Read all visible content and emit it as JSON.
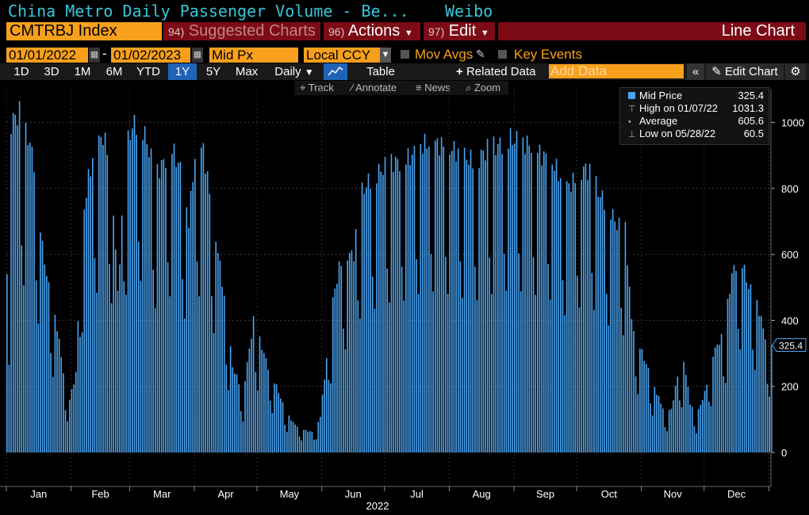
{
  "header": {
    "title": "China Metro Daily Passenger Volume - Be...",
    "source": "Weibo",
    "ticker": "CMTRBJ Index",
    "suggested_num": "94)",
    "suggested_label": "Suggested Charts",
    "actions_num": "96)",
    "actions_label": "Actions",
    "edit_num": "97)",
    "edit_label": "Edit",
    "chart_type": "Line Chart"
  },
  "controls": {
    "start_date": "01/01/2022",
    "dash": "-",
    "end_date": "01/02/2023",
    "field": "Mid Px",
    "currency": "Local CCY",
    "mov_avgs": "Mov Avgs",
    "key_events": "Key Events",
    "ranges": [
      "1D",
      "3D",
      "1M",
      "6M",
      "YTD",
      "1Y",
      "5Y",
      "Max"
    ],
    "selected_range": "1Y",
    "frequency": "Daily",
    "table_label": "Table",
    "related_label": "Related Data",
    "add_data_placeholder": "Add Data",
    "edit_chart_label": "Edit Chart",
    "track_label": "Track",
    "annotate_label": "Annotate",
    "news_label": "News",
    "zoom_label": "Zoom"
  },
  "legend": {
    "mid_label": "Mid Price",
    "mid_value": "325.4",
    "high_label": "High on 01/07/22",
    "high_value": "1031.3",
    "avg_label": "Average",
    "avg_value": "605.6",
    "low_label": "Low on 05/28/22",
    "low_value": "60.5"
  },
  "colors": {
    "bar": "#4aa3f0",
    "accent": "#f8a01c",
    "title": "#38c6d8",
    "banner": "#7c0b16"
  },
  "chart_data": {
    "type": "bar",
    "year_label": "2022",
    "months": [
      "Jan",
      "Feb",
      "Mar",
      "Apr",
      "May",
      "Jun",
      "Jul",
      "Aug",
      "Sep",
      "Oct",
      "Nov",
      "Dec"
    ],
    "yticks": [
      0,
      200,
      400,
      600,
      800,
      1000
    ],
    "ylim": [
      -100,
      1120
    ],
    "last_value_label": "325.4",
    "x_range": [
      "2022-01-01",
      "2023-01-02"
    ],
    "anchors": [
      [
        0,
        540
      ],
      [
        1,
        510
      ],
      [
        2,
        1000
      ],
      [
        6,
        1031
      ],
      [
        7,
        980
      ],
      [
        10,
        960
      ],
      [
        13,
        880
      ],
      [
        17,
        620
      ],
      [
        20,
        500
      ],
      [
        24,
        380
      ],
      [
        28,
        200
      ],
      [
        30,
        160
      ],
      [
        33,
        240
      ],
      [
        36,
        700
      ],
      [
        39,
        830
      ],
      [
        42,
        920
      ],
      [
        46,
        960
      ],
      [
        50,
        870
      ],
      [
        53,
        480
      ],
      [
        57,
        920
      ],
      [
        60,
        990
      ],
      [
        64,
        1000
      ],
      [
        67,
        940
      ],
      [
        71,
        840
      ],
      [
        75,
        880
      ],
      [
        79,
        920
      ],
      [
        83,
        860
      ],
      [
        87,
        700
      ],
      [
        90,
        900
      ],
      [
        94,
        920
      ],
      [
        98,
        740
      ],
      [
        103,
        520
      ],
      [
        108,
        260
      ],
      [
        113,
        180
      ],
      [
        118,
        400
      ],
      [
        121,
        340
      ],
      [
        125,
        260
      ],
      [
        129,
        200
      ],
      [
        133,
        130
      ],
      [
        137,
        90
      ],
      [
        141,
        70
      ],
      [
        147,
        60
      ],
      [
        150,
        110
      ],
      [
        156,
        460
      ],
      [
        159,
        560
      ],
      [
        162,
        600
      ],
      [
        166,
        600
      ],
      [
        169,
        780
      ],
      [
        173,
        820
      ],
      [
        178,
        850
      ],
      [
        184,
        880
      ],
      [
        189,
        880
      ],
      [
        194,
        900
      ],
      [
        198,
        930
      ],
      [
        203,
        940
      ],
      [
        208,
        930
      ],
      [
        213,
        920
      ],
      [
        218,
        900
      ],
      [
        224,
        880
      ],
      [
        230,
        920
      ],
      [
        235,
        930
      ],
      [
        241,
        950
      ],
      [
        246,
        940
      ],
      [
        251,
        930
      ],
      [
        256,
        900
      ],
      [
        260,
        890
      ],
      [
        263,
        860
      ],
      [
        267,
        800
      ],
      [
        271,
        820
      ],
      [
        276,
        860
      ],
      [
        280,
        850
      ],
      [
        283,
        790
      ],
      [
        286,
        760
      ],
      [
        289,
        730
      ],
      [
        292,
        690
      ],
      [
        296,
        680
      ],
      [
        299,
        400
      ],
      [
        303,
        320
      ],
      [
        307,
        250
      ],
      [
        311,
        180
      ],
      [
        315,
        120
      ],
      [
        318,
        130
      ],
      [
        321,
        230
      ],
      [
        324,
        280
      ],
      [
        327,
        150
      ],
      [
        330,
        110
      ],
      [
        334,
        180
      ],
      [
        338,
        300
      ],
      [
        343,
        360
      ],
      [
        347,
        540
      ],
      [
        351,
        600
      ],
      [
        355,
        500
      ],
      [
        358,
        480
      ],
      [
        364,
        325
      ]
    ]
  }
}
